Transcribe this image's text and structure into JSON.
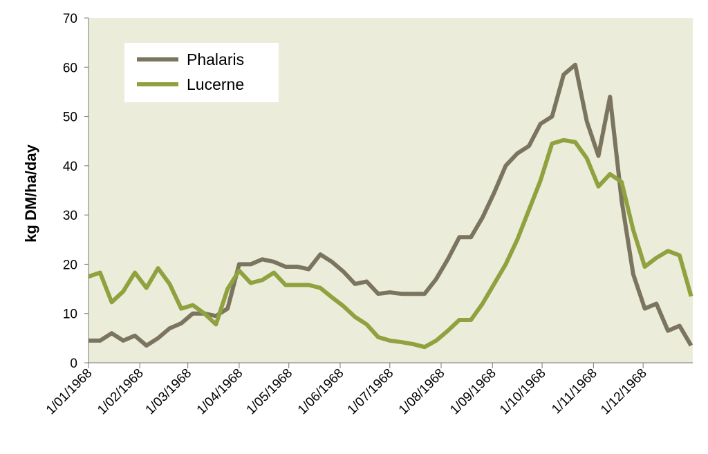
{
  "chart_data": {
    "type": "line",
    "y_label": "kg DM/ha/day",
    "x": [
      0,
      7,
      14,
      21,
      28,
      35,
      42,
      49,
      56,
      63,
      70,
      77,
      84,
      91,
      98,
      105,
      112,
      119,
      126,
      133,
      140,
      147,
      154,
      161,
      168,
      175,
      182,
      189,
      196,
      203,
      210,
      217,
      224,
      231,
      238,
      245,
      252,
      259,
      266,
      273,
      280,
      287,
      294,
      301,
      308,
      315,
      322,
      329,
      336,
      343,
      350,
      357,
      364
    ],
    "series": [
      {
        "name": "Phalaris",
        "color": "#7b7560",
        "values": [
          4.5,
          4.5,
          6,
          4.5,
          5.5,
          3.5,
          5,
          7,
          8,
          10,
          10,
          9.5,
          11,
          20,
          20,
          21,
          20.5,
          19.5,
          19.5,
          19,
          22,
          20.5,
          18.5,
          16,
          16.5,
          14,
          14.3,
          14,
          14,
          14,
          17,
          21,
          25.5,
          25.5,
          29.5,
          34.5,
          40,
          42.5,
          44,
          48.5,
          50,
          58.5,
          60.5,
          49,
          42,
          54,
          33,
          18,
          11,
          12,
          6.5,
          7.5,
          3.5
        ]
      },
      {
        "name": "Lucerne",
        "color": "#8fa23f",
        "values": [
          17.5,
          18.3,
          12.3,
          14.5,
          18.3,
          15.2,
          19.2,
          16,
          11,
          11.7,
          10,
          7.8,
          15,
          18.7,
          16.2,
          16.8,
          18.3,
          15.8,
          15.8,
          15.8,
          15.2,
          13.3,
          11.5,
          9.3,
          7.8,
          5.2,
          4.5,
          4.2,
          3.8,
          3.2,
          4.5,
          6.5,
          8.7,
          8.7,
          12,
          16,
          20,
          25,
          31,
          37,
          44.5,
          45.2,
          44.8,
          41.5,
          35.8,
          38.3,
          36.7,
          27,
          19.5,
          21.3,
          22.7,
          21.8,
          13.5
        ]
      }
    ],
    "xlim": [
      0,
      365
    ],
    "xticks": [
      {
        "value": 0,
        "label": "1/01/1968"
      },
      {
        "value": 31,
        "label": "1/02/1968"
      },
      {
        "value": 60,
        "label": "1/03/1968"
      },
      {
        "value": 91,
        "label": "1/04/1968"
      },
      {
        "value": 121,
        "label": "1/05/1968"
      },
      {
        "value": 152,
        "label": "1/06/1968"
      },
      {
        "value": 182,
        "label": "1/07/1968"
      },
      {
        "value": 213,
        "label": "1/08/1968"
      },
      {
        "value": 244,
        "label": "1/09/1968"
      },
      {
        "value": 274,
        "label": "1/10/1968"
      },
      {
        "value": 305,
        "label": "1/11/1968"
      },
      {
        "value": 335,
        "label": "1/12/1968"
      }
    ],
    "ylim": [
      0,
      70
    ],
    "yticks": [
      0,
      10,
      20,
      30,
      40,
      50,
      60,
      70
    ],
    "legend": "top-left",
    "background": "#ebecd9"
  }
}
